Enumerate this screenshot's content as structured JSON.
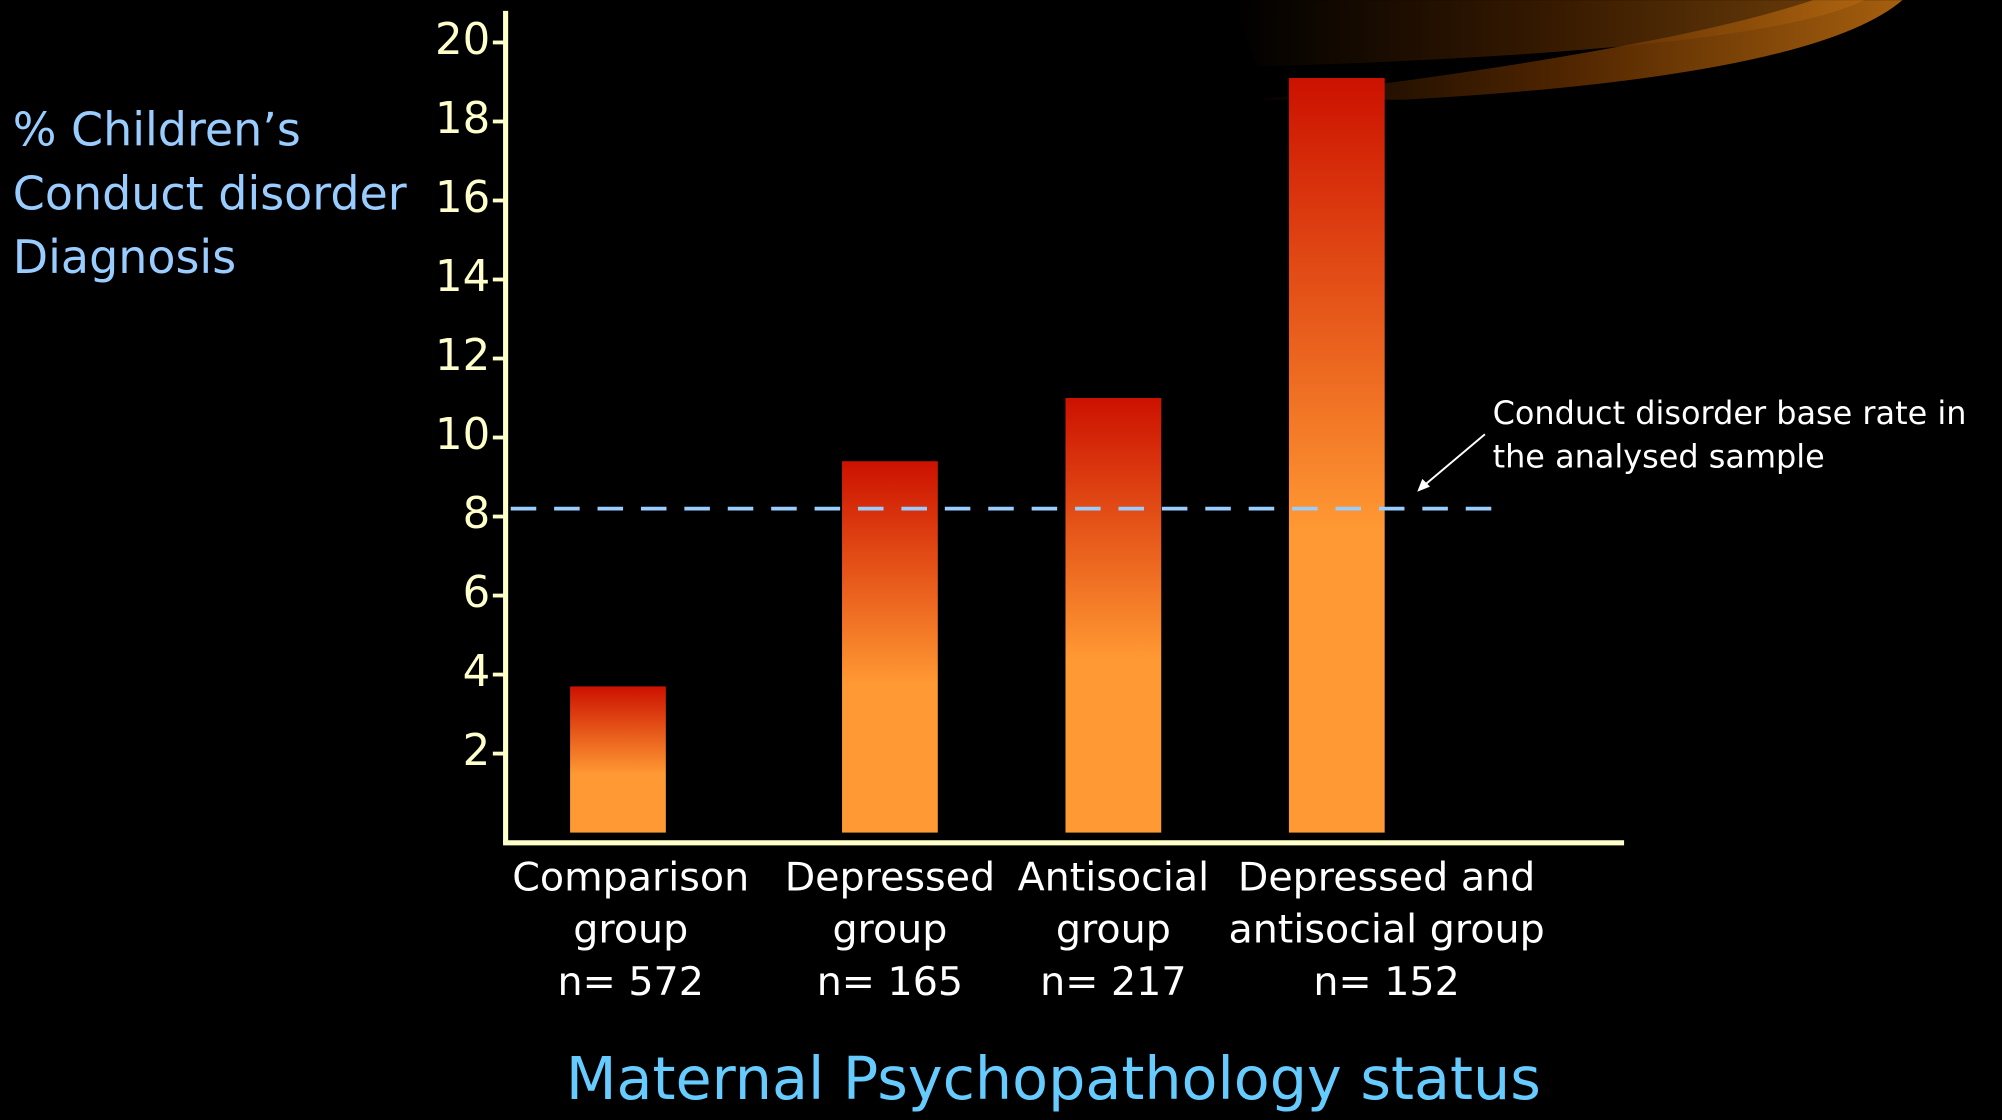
{
  "chart_data": {
    "type": "bar",
    "y_label": [
      "% Children’s",
      "Conduct disorder",
      "Diagnosis"
    ],
    "x_label": "Maternal Psychopathology status",
    "categories": [
      [
        "Comparison",
        "group",
        "n= 572"
      ],
      [
        "Depressed",
        "group",
        "n= 165"
      ],
      [
        "Antisocial",
        "group",
        "n= 217"
      ],
      [
        "Depressed and",
        "antisocial group",
        "n= 152"
      ]
    ],
    "values": [
      3.7,
      9.4,
      11.0,
      19.1
    ],
    "color": [
      "#cc1100",
      "#ff9933"
    ],
    "ylim": [
      0,
      20.8
    ],
    "yticks": [
      2,
      4,
      6,
      8,
      10,
      12,
      14,
      16,
      18,
      20
    ],
    "reference_line": {
      "value": 8.2,
      "color": "#99ccff",
      "annotation": [
        "Conduct disorder base rate in",
        "the analysed sample"
      ]
    }
  }
}
